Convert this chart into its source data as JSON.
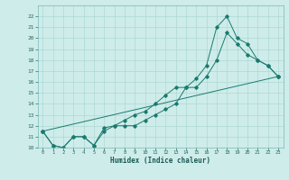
{
  "xlabel": "Humidex (Indice chaleur)",
  "bg_color": "#ceecea",
  "grid_color": "#aed8d5",
  "line_color": "#1a7a6e",
  "xlim": [
    -0.5,
    23.5
  ],
  "ylim": [
    10,
    23
  ],
  "xticks": [
    0,
    1,
    2,
    3,
    4,
    5,
    6,
    7,
    8,
    9,
    10,
    11,
    12,
    13,
    14,
    15,
    16,
    17,
    18,
    19,
    20,
    21,
    22,
    23
  ],
  "yticks": [
    10,
    11,
    12,
    13,
    14,
    15,
    16,
    17,
    18,
    19,
    20,
    21,
    22
  ],
  "series1_x": [
    0,
    1,
    2,
    3,
    4,
    5,
    6,
    7,
    8,
    9,
    10,
    11,
    12,
    13,
    14,
    15,
    16,
    17,
    18,
    19,
    20,
    21,
    22,
    23
  ],
  "series1_y": [
    11.5,
    10.2,
    10.0,
    11.0,
    11.0,
    10.2,
    11.8,
    12.0,
    12.5,
    13.0,
    13.3,
    14.0,
    14.8,
    15.5,
    15.5,
    15.5,
    16.5,
    18.0,
    20.5,
    19.5,
    18.5,
    18.0,
    17.5,
    16.5
  ],
  "series2_x": [
    0,
    1,
    2,
    3,
    4,
    5,
    6,
    7,
    8,
    9,
    10,
    11,
    12,
    13,
    14,
    15,
    16,
    17,
    18,
    19,
    20,
    21,
    22,
    23
  ],
  "series2_y": [
    11.5,
    10.2,
    10.0,
    11.0,
    11.0,
    10.2,
    11.5,
    12.0,
    12.0,
    12.0,
    12.5,
    13.0,
    13.5,
    14.0,
    15.5,
    16.3,
    17.5,
    21.0,
    22.0,
    20.0,
    19.5,
    18.0,
    17.5,
    16.5
  ],
  "series3_x": [
    0,
    23
  ],
  "series3_y": [
    11.5,
    16.5
  ]
}
